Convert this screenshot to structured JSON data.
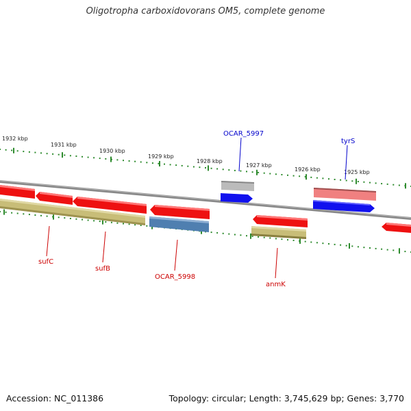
{
  "title": "Oligotropha carboxidovorans OM5, complete genome",
  "accession": "Accession: NC_011386",
  "summary": "Topology: circular; Length: 3,745,629 bp; Genes: 3,770",
  "colors": {
    "backbone": "#8a8a8a",
    "tick": "#2e8b2e",
    "red_gene": "#ee1111",
    "blue_gene": "#1111ee",
    "label_red": "#cc0000",
    "label_blue": "#0000cc"
  },
  "scale_labels": [
    "1932 kbp",
    "1931 kbp",
    "1930 kbp",
    "1929 kbp",
    "1928 kbp",
    "1927 kbp",
    "1926 kbp",
    "1925 kbp"
  ],
  "gene_labels": {
    "sufC": "sufC",
    "sufB": "sufB",
    "OCAR_5998": "OCAR_5998",
    "anmK": "anmK",
    "OCAR_5997": "OCAR_5997",
    "tyrS": "tyrS"
  }
}
